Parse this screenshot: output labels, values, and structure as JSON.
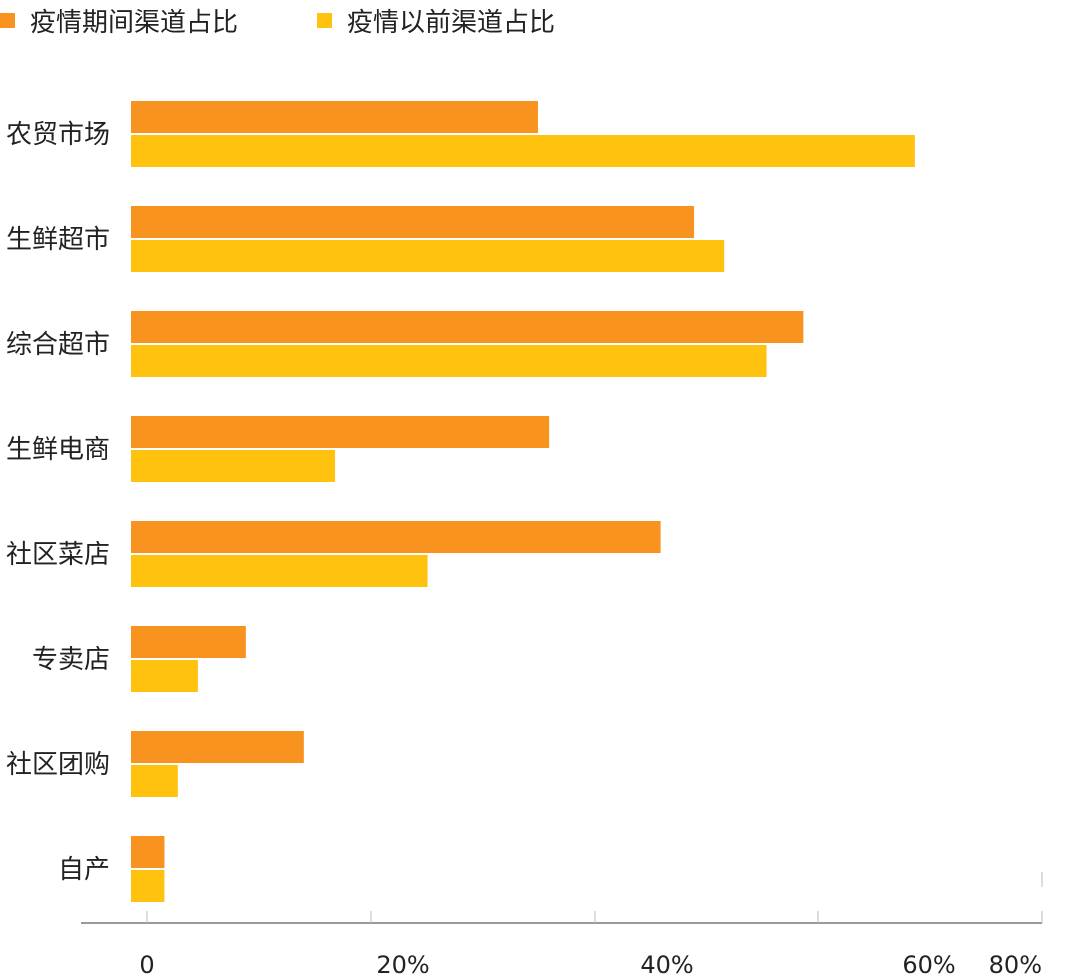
{
  "chart_data": {
    "type": "bar",
    "orientation": "horizontal",
    "categories": [
      "农贸市场",
      "生鲜超市",
      "综合超市",
      "生鲜电商",
      "社区菜店",
      "专卖店",
      "社区团购",
      "自产"
    ],
    "series": [
      {
        "name": "疫情期间渠道占比",
        "color": "#F7931E",
        "values": [
          36.5,
          50.5,
          60.3,
          37.5,
          47.5,
          10.3,
          15.5,
          3.0
        ]
      },
      {
        "name": "疫情以前渠道占比",
        "color": "#FFC20E",
        "values": [
          70.3,
          53.2,
          57.0,
          18.3,
          26.6,
          6.0,
          4.2,
          3.0
        ]
      }
    ],
    "xlim": [
      0,
      80
    ],
    "ticks": [
      "0",
      "20%",
      "40%",
      "60%",
      "80%"
    ],
    "tick_values": [
      0,
      20,
      40,
      60,
      80
    ],
    "legend_position": "top-left",
    "grid": false
  }
}
